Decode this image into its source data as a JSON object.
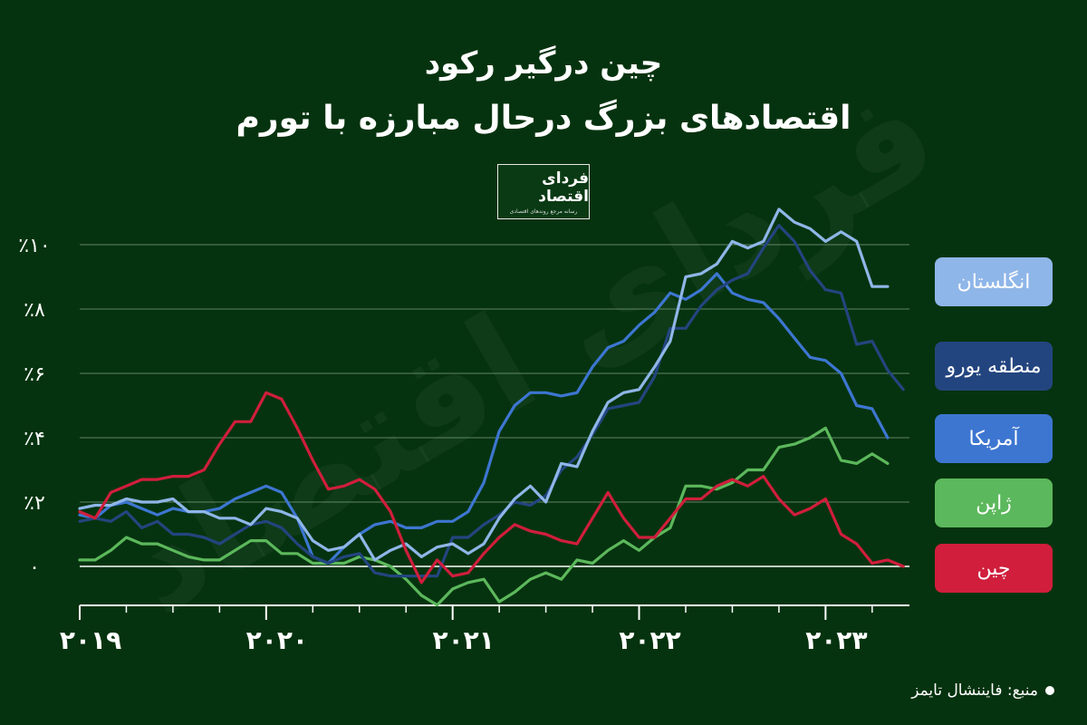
{
  "header": {
    "title_line1": "چین درگیر رکود",
    "title_line2": "اقتصادهای بزرگ درحال مبارزه با تورم"
  },
  "logo": {
    "name": "فردای اقتصاد",
    "tagline": "رسانه مرجع روندهای اقتصادی"
  },
  "watermark": "فردای اقتصاد",
  "source": "منبع: فایننشال تایمز",
  "colors": {
    "background": "#06330f",
    "uk": "#8fb6e8",
    "eurozone": "#23457f",
    "us": "#3d76d1",
    "japan": "#5cb85c",
    "china": "#d01e3c"
  },
  "chart_data": {
    "type": "line",
    "xlabel": "",
    "ylabel": "",
    "xlim": [
      2019,
      2023.45
    ],
    "ylim": [
      -1.5,
      10.5
    ],
    "x_tick_labels": [
      {
        "value": 2019,
        "label": "۲۰۱۹"
      },
      {
        "value": 2020,
        "label": "۲۰۲۰"
      },
      {
        "value": 2021,
        "label": "۲۰۲۱"
      },
      {
        "value": 2022,
        "label": "۲۰۲۲"
      },
      {
        "value": 2023,
        "label": "۲۰۲۳"
      }
    ],
    "y_tick_labels": [
      {
        "value": 0,
        "label": "۰"
      },
      {
        "value": 2,
        "label": "٪۲"
      },
      {
        "value": 4,
        "label": "٪۴"
      },
      {
        "value": 6,
        "label": "٪۶"
      },
      {
        "value": 8,
        "label": "٪۸"
      },
      {
        "value": 10,
        "label": "٪۱۰"
      }
    ],
    "grid": true,
    "legend_position": "right",
    "series": [
      {
        "name": "انگلستان",
        "key": "uk",
        "color": "#8fb6e8",
        "points": [
          [
            2019,
            1.8
          ],
          [
            2019.083,
            1.9
          ],
          [
            2019.167,
            1.9
          ],
          [
            2019.25,
            2.1
          ],
          [
            2019.333,
            2.0
          ],
          [
            2019.417,
            2.0
          ],
          [
            2019.5,
            2.1
          ],
          [
            2019.583,
            1.7
          ],
          [
            2019.667,
            1.7
          ],
          [
            2019.75,
            1.5
          ],
          [
            2019.833,
            1.5
          ],
          [
            2019.917,
            1.3
          ],
          [
            2020,
            1.8
          ],
          [
            2020.083,
            1.7
          ],
          [
            2020.167,
            1.5
          ],
          [
            2020.25,
            0.8
          ],
          [
            2020.333,
            0.5
          ],
          [
            2020.417,
            0.6
          ],
          [
            2020.5,
            1.0
          ],
          [
            2020.583,
            0.2
          ],
          [
            2020.667,
            0.5
          ],
          [
            2020.75,
            0.7
          ],
          [
            2020.833,
            0.3
          ],
          [
            2020.917,
            0.6
          ],
          [
            2021,
            0.7
          ],
          [
            2021.083,
            0.4
          ],
          [
            2021.167,
            0.7
          ],
          [
            2021.25,
            1.5
          ],
          [
            2021.333,
            2.1
          ],
          [
            2021.417,
            2.5
          ],
          [
            2021.5,
            2.0
          ],
          [
            2021.583,
            3.2
          ],
          [
            2021.667,
            3.1
          ],
          [
            2021.75,
            4.2
          ],
          [
            2021.833,
            5.1
          ],
          [
            2021.917,
            5.4
          ],
          [
            2022,
            5.5
          ],
          [
            2022.083,
            6.2
          ],
          [
            2022.167,
            7.0
          ],
          [
            2022.25,
            9.0
          ],
          [
            2022.333,
            9.1
          ],
          [
            2022.417,
            9.4
          ],
          [
            2022.5,
            10.1
          ],
          [
            2022.583,
            9.9
          ],
          [
            2022.667,
            10.1
          ],
          [
            2022.75,
            11.1
          ],
          [
            2022.833,
            10.7
          ],
          [
            2022.917,
            10.5
          ],
          [
            2023,
            10.1
          ],
          [
            2023.083,
            10.4
          ],
          [
            2023.167,
            10.1
          ],
          [
            2023.25,
            8.7
          ],
          [
            2023.333,
            8.7
          ]
        ]
      },
      {
        "name": "منطقه یورو",
        "key": "eurozone",
        "color": "#23457f",
        "points": [
          [
            2019,
            1.4
          ],
          [
            2019.083,
            1.5
          ],
          [
            2019.167,
            1.4
          ],
          [
            2019.25,
            1.7
          ],
          [
            2019.333,
            1.2
          ],
          [
            2019.417,
            1.4
          ],
          [
            2019.5,
            1.0
          ],
          [
            2019.583,
            1.0
          ],
          [
            2019.667,
            0.9
          ],
          [
            2019.75,
            0.7
          ],
          [
            2019.833,
            1.0
          ],
          [
            2019.917,
            1.3
          ],
          [
            2020,
            1.4
          ],
          [
            2020.083,
            1.2
          ],
          [
            2020.167,
            0.7
          ],
          [
            2020.25,
            0.3
          ],
          [
            2020.333,
            0.1
          ],
          [
            2020.417,
            0.3
          ],
          [
            2020.5,
            0.4
          ],
          [
            2020.583,
            -0.2
          ],
          [
            2020.667,
            -0.3
          ],
          [
            2020.75,
            -0.3
          ],
          [
            2020.833,
            -0.3
          ],
          [
            2020.917,
            -0.3
          ],
          [
            2021,
            0.9
          ],
          [
            2021.083,
            0.9
          ],
          [
            2021.167,
            1.3
          ],
          [
            2021.25,
            1.6
          ],
          [
            2021.333,
            2.0
          ],
          [
            2021.417,
            1.9
          ],
          [
            2021.5,
            2.2
          ],
          [
            2021.583,
            3.0
          ],
          [
            2021.667,
            3.4
          ],
          [
            2021.75,
            4.1
          ],
          [
            2021.833,
            4.9
          ],
          [
            2021.917,
            5.0
          ],
          [
            2022,
            5.1
          ],
          [
            2022.083,
            5.9
          ],
          [
            2022.167,
            7.4
          ],
          [
            2022.25,
            7.4
          ],
          [
            2022.333,
            8.1
          ],
          [
            2022.417,
            8.6
          ],
          [
            2022.5,
            8.9
          ],
          [
            2022.583,
            9.1
          ],
          [
            2022.667,
            9.9
          ],
          [
            2022.75,
            10.6
          ],
          [
            2022.833,
            10.1
          ],
          [
            2022.917,
            9.2
          ],
          [
            2023,
            8.6
          ],
          [
            2023.083,
            8.5
          ],
          [
            2023.167,
            6.9
          ],
          [
            2023.25,
            7.0
          ],
          [
            2023.333,
            6.1
          ],
          [
            2023.417,
            5.5
          ]
        ]
      },
      {
        "name": "آمریکا",
        "key": "us",
        "color": "#3d76d1",
        "points": [
          [
            2019,
            1.6
          ],
          [
            2019.083,
            1.5
          ],
          [
            2019.167,
            1.9
          ],
          [
            2019.25,
            2.0
          ],
          [
            2019.333,
            1.8
          ],
          [
            2019.417,
            1.6
          ],
          [
            2019.5,
            1.8
          ],
          [
            2019.583,
            1.7
          ],
          [
            2019.667,
            1.7
          ],
          [
            2019.75,
            1.8
          ],
          [
            2019.833,
            2.1
          ],
          [
            2019.917,
            2.3
          ],
          [
            2020,
            2.5
          ],
          [
            2020.083,
            2.3
          ],
          [
            2020.167,
            1.5
          ],
          [
            2020.25,
            0.3
          ],
          [
            2020.333,
            0.1
          ],
          [
            2020.417,
            0.6
          ],
          [
            2020.5,
            1.0
          ],
          [
            2020.583,
            1.3
          ],
          [
            2020.667,
            1.4
          ],
          [
            2020.75,
            1.2
          ],
          [
            2020.833,
            1.2
          ],
          [
            2020.917,
            1.4
          ],
          [
            2021,
            1.4
          ],
          [
            2021.083,
            1.7
          ],
          [
            2021.167,
            2.6
          ],
          [
            2021.25,
            4.2
          ],
          [
            2021.333,
            5.0
          ],
          [
            2021.417,
            5.4
          ],
          [
            2021.5,
            5.4
          ],
          [
            2021.583,
            5.3
          ],
          [
            2021.667,
            5.4
          ],
          [
            2021.75,
            6.2
          ],
          [
            2021.833,
            6.8
          ],
          [
            2021.917,
            7.0
          ],
          [
            2022,
            7.5
          ],
          [
            2022.083,
            7.9
          ],
          [
            2022.167,
            8.5
          ],
          [
            2022.25,
            8.3
          ],
          [
            2022.333,
            8.6
          ],
          [
            2022.417,
            9.1
          ],
          [
            2022.5,
            8.5
          ],
          [
            2022.583,
            8.3
          ],
          [
            2022.667,
            8.2
          ],
          [
            2022.75,
            7.7
          ],
          [
            2022.833,
            7.1
          ],
          [
            2022.917,
            6.5
          ],
          [
            2023,
            6.4
          ],
          [
            2023.083,
            6.0
          ],
          [
            2023.167,
            5.0
          ],
          [
            2023.25,
            4.9
          ],
          [
            2023.333,
            4.0
          ]
        ]
      },
      {
        "name": "ژاپن",
        "key": "japan",
        "color": "#5cb85c",
        "points": [
          [
            2019,
            0.2
          ],
          [
            2019.083,
            0.2
          ],
          [
            2019.167,
            0.5
          ],
          [
            2019.25,
            0.9
          ],
          [
            2019.333,
            0.7
          ],
          [
            2019.417,
            0.7
          ],
          [
            2019.5,
            0.5
          ],
          [
            2019.583,
            0.3
          ],
          [
            2019.667,
            0.2
          ],
          [
            2019.75,
            0.2
          ],
          [
            2019.833,
            0.5
          ],
          [
            2019.917,
            0.8
          ],
          [
            2020,
            0.8
          ],
          [
            2020.083,
            0.4
          ],
          [
            2020.167,
            0.4
          ],
          [
            2020.25,
            0.1
          ],
          [
            2020.333,
            0.1
          ],
          [
            2020.417,
            0.1
          ],
          [
            2020.5,
            0.3
          ],
          [
            2020.583,
            0.2
          ],
          [
            2020.667,
            0.0
          ],
          [
            2020.75,
            -0.4
          ],
          [
            2020.833,
            -0.9
          ],
          [
            2020.917,
            -1.2
          ],
          [
            2021,
            -0.7
          ],
          [
            2021.083,
            -0.5
          ],
          [
            2021.167,
            -0.4
          ],
          [
            2021.25,
            -1.1
          ],
          [
            2021.333,
            -0.8
          ],
          [
            2021.417,
            -0.4
          ],
          [
            2021.5,
            -0.2
          ],
          [
            2021.583,
            -0.4
          ],
          [
            2021.667,
            0.2
          ],
          [
            2021.75,
            0.1
          ],
          [
            2021.833,
            0.5
          ],
          [
            2021.917,
            0.8
          ],
          [
            2022,
            0.5
          ],
          [
            2022.083,
            0.9
          ],
          [
            2022.167,
            1.2
          ],
          [
            2022.25,
            2.5
          ],
          [
            2022.333,
            2.5
          ],
          [
            2022.417,
            2.4
          ],
          [
            2022.5,
            2.6
          ],
          [
            2022.583,
            3.0
          ],
          [
            2022.667,
            3.0
          ],
          [
            2022.75,
            3.7
          ],
          [
            2022.833,
            3.8
          ],
          [
            2022.917,
            4.0
          ],
          [
            2023,
            4.3
          ],
          [
            2023.083,
            3.3
          ],
          [
            2023.167,
            3.2
          ],
          [
            2023.25,
            3.5
          ],
          [
            2023.333,
            3.2
          ]
        ]
      },
      {
        "name": "چین",
        "key": "china",
        "color": "#d01e3c",
        "points": [
          [
            2019,
            1.7
          ],
          [
            2019.083,
            1.5
          ],
          [
            2019.167,
            2.3
          ],
          [
            2019.25,
            2.5
          ],
          [
            2019.333,
            2.7
          ],
          [
            2019.417,
            2.7
          ],
          [
            2019.5,
            2.8
          ],
          [
            2019.583,
            2.8
          ],
          [
            2019.667,
            3.0
          ],
          [
            2019.75,
            3.8
          ],
          [
            2019.833,
            4.5
          ],
          [
            2019.917,
            4.5
          ],
          [
            2020,
            5.4
          ],
          [
            2020.083,
            5.2
          ],
          [
            2020.167,
            4.3
          ],
          [
            2020.25,
            3.3
          ],
          [
            2020.333,
            2.4
          ],
          [
            2020.417,
            2.5
          ],
          [
            2020.5,
            2.7
          ],
          [
            2020.583,
            2.4
          ],
          [
            2020.667,
            1.7
          ],
          [
            2020.75,
            0.5
          ],
          [
            2020.833,
            -0.5
          ],
          [
            2020.917,
            0.2
          ],
          [
            2021,
            -0.3
          ],
          [
            2021.083,
            -0.2
          ],
          [
            2021.167,
            0.4
          ],
          [
            2021.25,
            0.9
          ],
          [
            2021.333,
            1.3
          ],
          [
            2021.417,
            1.1
          ],
          [
            2021.5,
            1.0
          ],
          [
            2021.583,
            0.8
          ],
          [
            2021.667,
            0.7
          ],
          [
            2021.75,
            1.5
          ],
          [
            2021.833,
            2.3
          ],
          [
            2021.917,
            1.5
          ],
          [
            2022,
            0.9
          ],
          [
            2022.083,
            0.9
          ],
          [
            2022.167,
            1.5
          ],
          [
            2022.25,
            2.1
          ],
          [
            2022.333,
            2.1
          ],
          [
            2022.417,
            2.5
          ],
          [
            2022.5,
            2.7
          ],
          [
            2022.583,
            2.5
          ],
          [
            2022.667,
            2.8
          ],
          [
            2022.75,
            2.1
          ],
          [
            2022.833,
            1.6
          ],
          [
            2022.917,
            1.8
          ],
          [
            2023,
            2.1
          ],
          [
            2023.083,
            1.0
          ],
          [
            2023.167,
            0.7
          ],
          [
            2023.25,
            0.1
          ],
          [
            2023.333,
            0.2
          ],
          [
            2023.417,
            0.0
          ]
        ]
      }
    ]
  }
}
